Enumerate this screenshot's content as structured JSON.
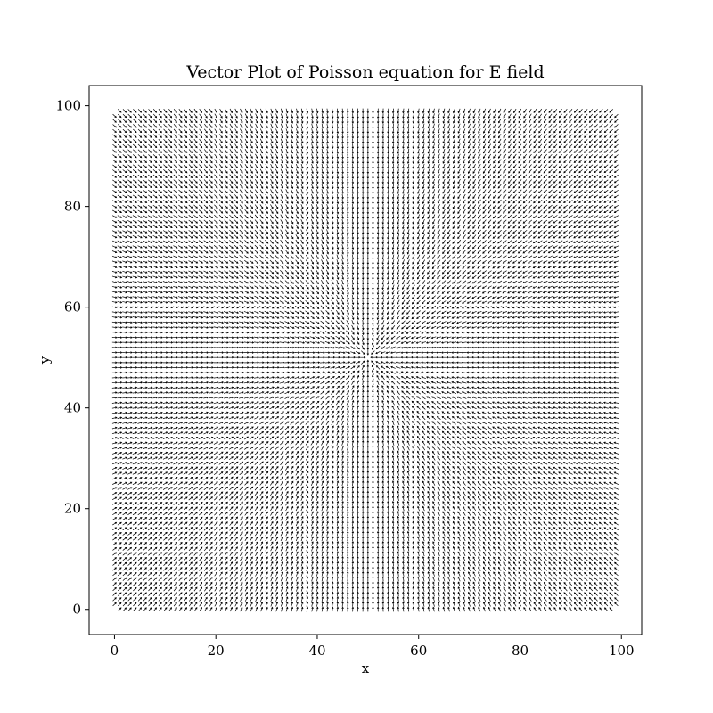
{
  "chart_data": {
    "type": "quiver",
    "title": "Vector Plot of Poisson equation for E field",
    "xlabel": "x",
    "ylabel": "y",
    "xlim": [
      -5,
      104
    ],
    "ylim": [
      -5,
      104
    ],
    "xticks": [
      0,
      20,
      40,
      60,
      80,
      100
    ],
    "yticks": [
      0,
      20,
      40,
      60,
      80,
      100
    ],
    "xtick_labels": [
      "0",
      "20",
      "40",
      "60",
      "80",
      "100"
    ],
    "ytick_labels": [
      "0",
      "20",
      "40",
      "60",
      "80",
      "100"
    ],
    "grid": false,
    "arrow_color": "#000000",
    "field": {
      "grid_x_range": [
        0,
        99
      ],
      "grid_y_range": [
        0,
        99
      ],
      "grid_step": 1,
      "source_center": [
        50,
        50
      ],
      "direction": "radially inward toward center",
      "corners_empty": true
    }
  }
}
